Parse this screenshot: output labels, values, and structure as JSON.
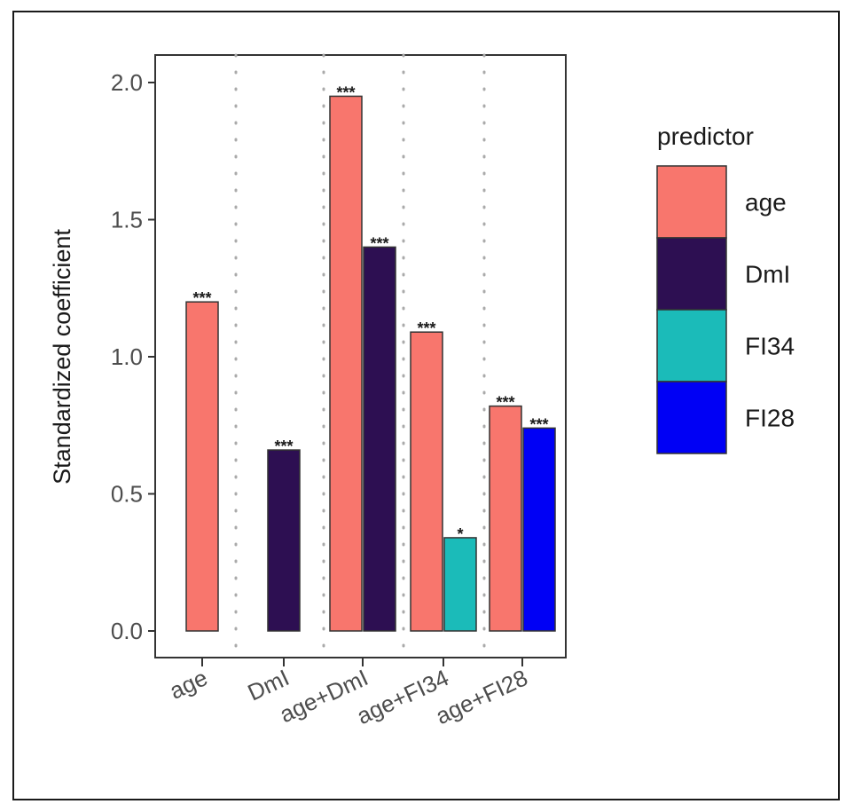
{
  "chart_data": {
    "type": "bar",
    "ylabel": "Standardized coefficient",
    "xlabel": "",
    "ylim": [
      0,
      2.05
    ],
    "yticks": [
      "0.0",
      "0.5",
      "1.0",
      "1.5",
      "2.0"
    ],
    "categories": [
      "age",
      "DmI",
      "age+DmI",
      "age+FI34",
      "age+FI28"
    ],
    "grid": "vertical dotted separators between groups",
    "legend": {
      "title": "predictor",
      "placement": "right",
      "entries": [
        {
          "name": "age",
          "color": "#F8766D"
        },
        {
          "name": "DmI",
          "color": "#2D0F52"
        },
        {
          "name": "FI34",
          "color": "#1BBBB9"
        },
        {
          "name": "FI28",
          "color": "#0000F5"
        }
      ]
    },
    "bars": [
      {
        "category": "age",
        "predictor": "age",
        "value": 1.2,
        "sig": "***"
      },
      {
        "category": "DmI",
        "predictor": "DmI",
        "value": 0.66,
        "sig": "***"
      },
      {
        "category": "age+DmI",
        "predictor": "age",
        "value": 1.95,
        "sig": "***"
      },
      {
        "category": "age+DmI",
        "predictor": "DmI",
        "value": 1.4,
        "sig": "***"
      },
      {
        "category": "age+FI34",
        "predictor": "age",
        "value": 1.09,
        "sig": "***"
      },
      {
        "category": "age+FI34",
        "predictor": "FI34",
        "value": 0.34,
        "sig": "*"
      },
      {
        "category": "age+FI28",
        "predictor": "age",
        "value": 0.82,
        "sig": "***"
      },
      {
        "category": "age+FI28",
        "predictor": "FI28",
        "value": 0.74,
        "sig": "***"
      }
    ]
  }
}
